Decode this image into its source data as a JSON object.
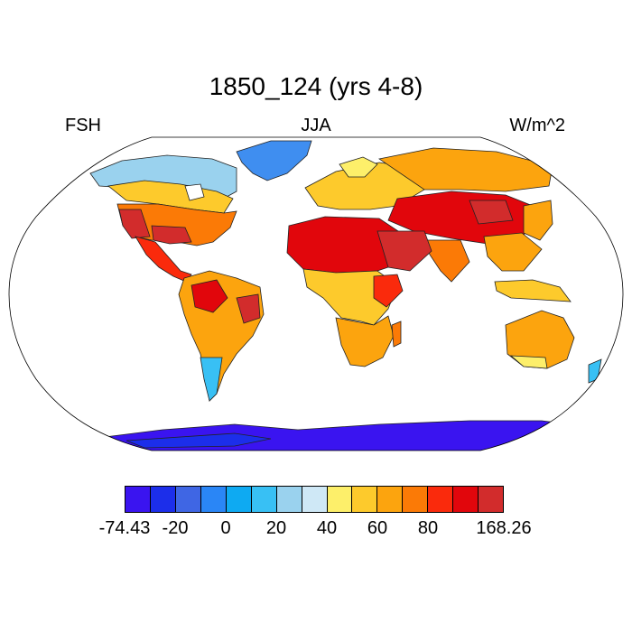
{
  "map": {
    "title": "1850_124 (yrs 4-8)",
    "left_label": "FSH",
    "center_label": "JJA",
    "right_label": "W/m^2",
    "projection": "Robinson",
    "variable": "FSH",
    "season": "JJA",
    "units": "W/m^2"
  },
  "colorbar": {
    "colors": [
      "#3a14f0",
      "#1c2eea",
      "#3f66e4",
      "#2a86f6",
      "#0eaaf2",
      "#38c0f4",
      "#9ad2ee",
      "#cfe8f6",
      "#fdef6a",
      "#fdca2c",
      "#fca40e",
      "#fb7a06",
      "#fa2a0c",
      "#e1060c",
      "#d22c2c"
    ],
    "labels": [
      {
        "text": "-74.43",
        "boundary": 0
      },
      {
        "text": "-20",
        "boundary": 2
      },
      {
        "text": "0",
        "boundary": 4
      },
      {
        "text": "20",
        "boundary": 6
      },
      {
        "text": "40",
        "boundary": 8
      },
      {
        "text": "60",
        "boundary": 10
      },
      {
        "text": "80",
        "boundary": 12
      },
      {
        "text": "168.26",
        "boundary": 15
      }
    ]
  }
}
